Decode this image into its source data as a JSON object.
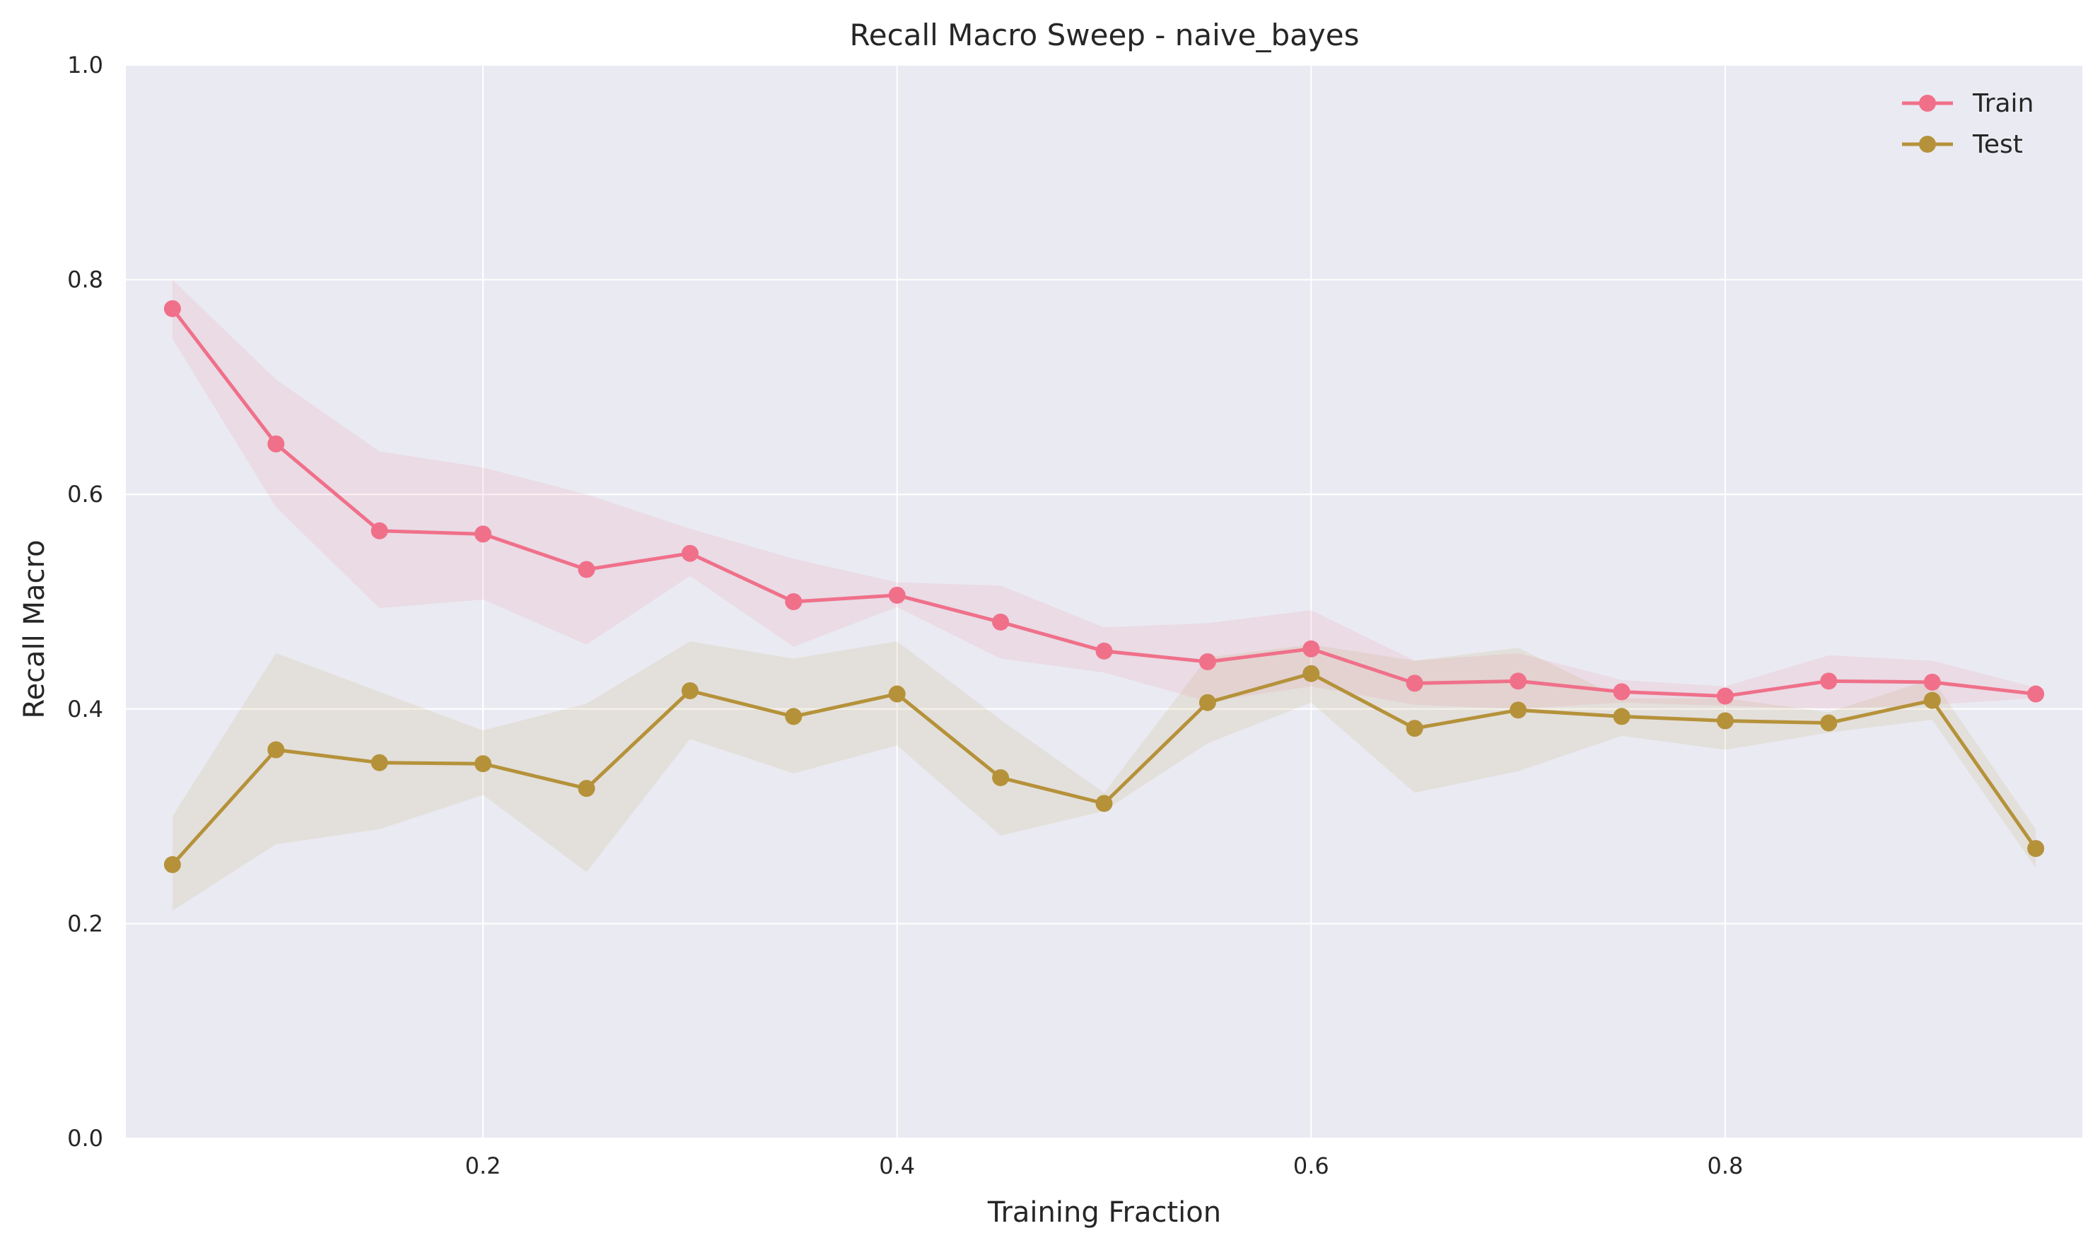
{
  "chart_data": {
    "type": "line",
    "title": "Recall Macro Sweep - naive_bayes",
    "xlabel": "Training Fraction",
    "ylabel": "Recall Macro",
    "xlim": [
      0.0275,
      0.9725
    ],
    "ylim": [
      0.0,
      1.0
    ],
    "xticks": [
      0.2,
      0.4,
      0.6,
      0.8
    ],
    "xtick_labels": [
      "0.2",
      "0.4",
      "0.6",
      "0.8"
    ],
    "yticks": [
      0.0,
      0.2,
      0.4,
      0.6,
      0.8,
      1.0
    ],
    "ytick_labels": [
      "0.0",
      "0.2",
      "0.4",
      "0.6",
      "0.8",
      "1.0"
    ],
    "grid": true,
    "legend_position": "top-right",
    "x": [
      0.05,
      0.1,
      0.15,
      0.2,
      0.25,
      0.3,
      0.35,
      0.4,
      0.45,
      0.5,
      0.55,
      0.6,
      0.65,
      0.7,
      0.75,
      0.8,
      0.85,
      0.9,
      0.95
    ],
    "series": [
      {
        "name": "Train",
        "color": "#f0708a",
        "values": [
          0.773,
          0.647,
          0.566,
          0.563,
          0.53,
          0.545,
          0.5,
          0.506,
          0.481,
          0.454,
          0.444,
          0.456,
          0.424,
          0.426,
          0.416,
          0.412,
          0.426,
          0.425,
          0.414
        ],
        "band_low": [
          0.745,
          0.588,
          0.494,
          0.502,
          0.46,
          0.524,
          0.458,
          0.495,
          0.447,
          0.434,
          0.407,
          0.421,
          0.404,
          0.4,
          0.406,
          0.403,
          0.4,
          0.404,
          0.41
        ],
        "band_high": [
          0.8,
          0.707,
          0.64,
          0.625,
          0.6,
          0.568,
          0.54,
          0.518,
          0.515,
          0.476,
          0.48,
          0.492,
          0.445,
          0.452,
          0.427,
          0.421,
          0.45,
          0.445,
          0.42
        ]
      },
      {
        "name": "Test",
        "color": "#b5923a",
        "values": [
          0.255,
          0.362,
          0.35,
          0.349,
          0.326,
          0.417,
          0.393,
          0.414,
          0.336,
          0.312,
          0.406,
          0.433,
          0.382,
          0.399,
          0.393,
          0.389,
          0.387,
          0.408,
          0.27
        ],
        "band_low": [
          0.212,
          0.274,
          0.288,
          0.32,
          0.248,
          0.372,
          0.34,
          0.366,
          0.282,
          0.305,
          0.368,
          0.406,
          0.322,
          0.342,
          0.375,
          0.362,
          0.378,
          0.39,
          0.252
        ],
        "band_high": [
          0.3,
          0.452,
          0.416,
          0.38,
          0.405,
          0.463,
          0.447,
          0.463,
          0.39,
          0.322,
          0.448,
          0.46,
          0.445,
          0.457,
          0.41,
          0.41,
          0.397,
          0.428,
          0.288
        ]
      }
    ]
  }
}
